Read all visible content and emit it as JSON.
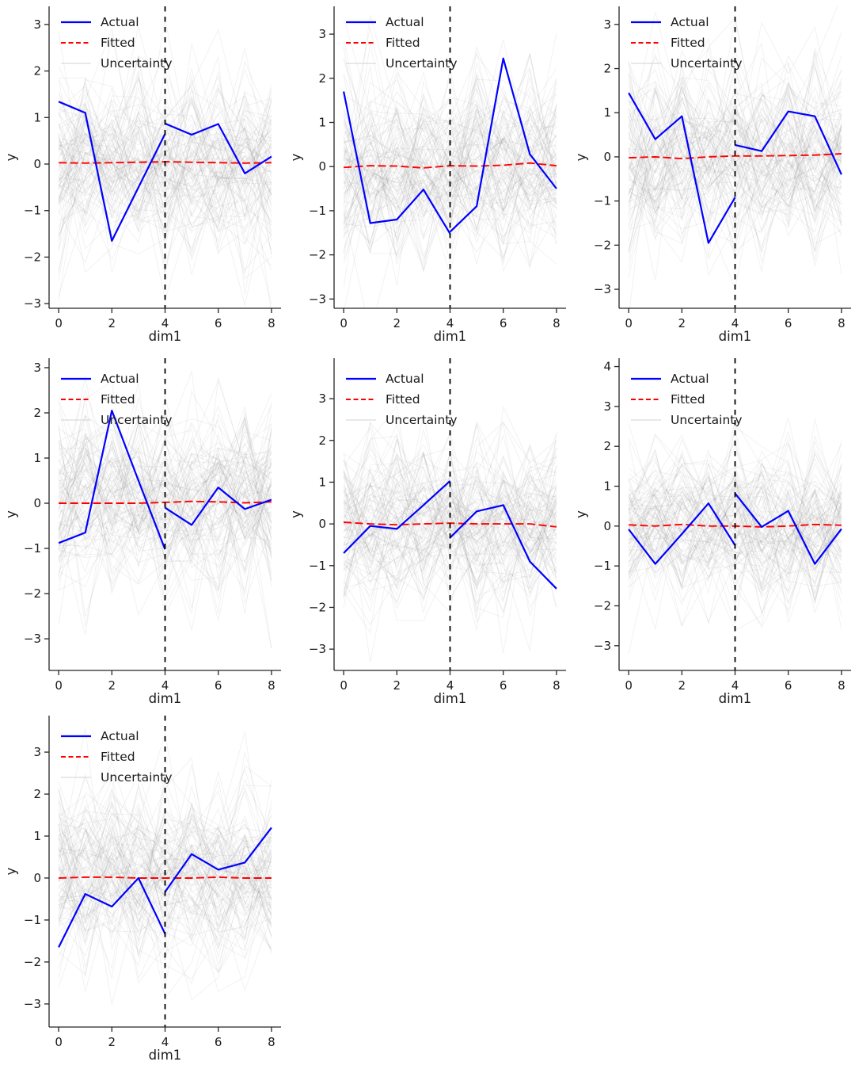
{
  "figure": {
    "background": "#ffffff",
    "text_color": "#1a1a1a",
    "spine_color": "#262626",
    "tick_color": "#262626",
    "actual_style": {
      "color": "#0000ff",
      "width": 2.2
    },
    "fitted_style": {
      "color": "#ff0000",
      "width": 1.9,
      "dash": "10,4.5"
    },
    "split_line": {
      "x": 4,
      "color": "#000000",
      "width": 1.8,
      "dash": "6.5,6.5"
    },
    "uncertainty_style": {
      "color": "#7f7f7f",
      "opacity": 0.1,
      "line_width": 1
    },
    "legend": {
      "entries": [
        {
          "label": "Actual",
          "color": "#0000ff",
          "dash": "solid",
          "width": 2.2
        },
        {
          "label": "Fitted",
          "color": "#ff0000",
          "dash": "dashed",
          "width": 1.9
        },
        {
          "label": "Uncertainty",
          "color": "#d9d9d9",
          "dash": "solid",
          "width": 1.3
        }
      ]
    }
  },
  "chart_data": [
    {
      "type": "line",
      "xlabel": "dim1",
      "ylabel": "y",
      "xticks": [
        0,
        2,
        4,
        6,
        8
      ],
      "yticks": [
        -3,
        -2,
        -1,
        0,
        1,
        2,
        3
      ],
      "xlim": [
        -0.36,
        8.36
      ],
      "ylim": [
        -3.1,
        3.39
      ],
      "split_x": 4,
      "series": [
        {
          "name": "Actual (observed)",
          "x": [
            0,
            1,
            2,
            3,
            4
          ],
          "values": [
            1.34,
            1.1,
            -1.65,
            -0.5,
            0.65
          ]
        },
        {
          "name": "Actual (after split)",
          "x": [
            4,
            5,
            6,
            7,
            8
          ],
          "values": [
            0.87,
            0.63,
            0.86,
            -0.2,
            0.16
          ]
        },
        {
          "name": "Fitted",
          "x": [
            0,
            1,
            2,
            3,
            4,
            5,
            6,
            7,
            8
          ],
          "values": [
            0.03,
            0.02,
            0.03,
            0.04,
            0.05,
            0.04,
            0.03,
            0.02,
            0.03
          ]
        }
      ],
      "uncertainty": {
        "n_lines": 100,
        "seed": 3,
        "sigma": 1.05
      }
    },
    {
      "type": "line",
      "xlabel": "dim1",
      "ylabel": "y",
      "xticks": [
        0,
        2,
        4,
        6,
        8
      ],
      "yticks": [
        -3,
        -2,
        -1,
        0,
        1,
        2,
        3
      ],
      "xlim": [
        -0.36,
        8.36
      ],
      "ylim": [
        -3.21,
        3.63
      ],
      "split_x": 4,
      "series": [
        {
          "name": "Actual (observed)",
          "x": [
            0,
            1,
            2,
            3,
            4
          ],
          "values": [
            1.7,
            -1.28,
            -1.2,
            -0.52,
            -1.52
          ]
        },
        {
          "name": "Actual (after split)",
          "x": [
            4,
            5,
            6,
            7,
            8
          ],
          "values": [
            -1.48,
            -0.9,
            2.45,
            0.28,
            -0.5
          ]
        },
        {
          "name": "Fitted",
          "x": [
            0,
            1,
            2,
            3,
            4,
            5,
            6,
            7,
            8
          ],
          "values": [
            -0.02,
            0.02,
            0.01,
            -0.03,
            0.02,
            0.01,
            0.03,
            0.08,
            0.02
          ]
        }
      ],
      "uncertainty": {
        "n_lines": 100,
        "seed": 7,
        "sigma": 1.05
      }
    },
    {
      "type": "line",
      "xlabel": "dim1",
      "ylabel": "y",
      "xticks": [
        0,
        2,
        4,
        6,
        8
      ],
      "yticks": [
        -3,
        -2,
        -1,
        0,
        1,
        2,
        3
      ],
      "xlim": [
        -0.36,
        8.36
      ],
      "ylim": [
        -3.43,
        3.41
      ],
      "split_x": 4,
      "series": [
        {
          "name": "Actual (observed)",
          "x": [
            0,
            1,
            2,
            3,
            4
          ],
          "values": [
            1.45,
            0.4,
            0.92,
            -1.95,
            -0.92
          ]
        },
        {
          "name": "Actual (after split)",
          "x": [
            4,
            5,
            6,
            7,
            8
          ],
          "values": [
            0.27,
            0.13,
            1.03,
            0.92,
            -0.4
          ]
        },
        {
          "name": "Fitted",
          "x": [
            0,
            1,
            2,
            3,
            4,
            5,
            6,
            7,
            8
          ],
          "values": [
            -0.02,
            0.0,
            -0.04,
            0.0,
            0.02,
            0.02,
            0.03,
            0.04,
            0.07
          ]
        }
      ],
      "uncertainty": {
        "n_lines": 100,
        "seed": 11,
        "sigma": 1.05
      }
    },
    {
      "type": "line",
      "xlabel": "dim1",
      "ylabel": "y",
      "xticks": [
        0,
        2,
        4,
        6,
        8
      ],
      "yticks": [
        -3,
        -2,
        -1,
        0,
        1,
        2,
        3
      ],
      "xlim": [
        -0.36,
        8.36
      ],
      "ylim": [
        -3.7,
        3.21
      ],
      "split_x": 4,
      "series": [
        {
          "name": "Actual (observed)",
          "x": [
            0,
            1,
            2,
            3,
            4
          ],
          "values": [
            -0.88,
            -0.65,
            2.05,
            0.5,
            -1.02
          ]
        },
        {
          "name": "Actual (after split)",
          "x": [
            4,
            5,
            6,
            7,
            8
          ],
          "values": [
            -0.1,
            -0.48,
            0.35,
            -0.13,
            0.08
          ]
        },
        {
          "name": "Fitted",
          "x": [
            0,
            1,
            2,
            3,
            4,
            5,
            6,
            7,
            8
          ],
          "values": [
            0.0,
            0.0,
            0.0,
            0.0,
            0.02,
            0.04,
            0.03,
            0.01,
            0.03
          ]
        }
      ],
      "uncertainty": {
        "n_lines": 100,
        "seed": 13,
        "sigma": 1.05
      }
    },
    {
      "type": "line",
      "xlabel": "dim1",
      "ylabel": "y",
      "xticks": [
        0,
        2,
        4,
        6,
        8
      ],
      "yticks": [
        -3,
        -2,
        -1,
        0,
        1,
        2,
        3
      ],
      "xlim": [
        -0.36,
        8.36
      ],
      "ylim": [
        -3.51,
        3.97
      ],
      "split_x": 4,
      "series": [
        {
          "name": "Actual (observed)",
          "x": [
            0,
            1,
            2,
            3,
            4
          ],
          "values": [
            -0.7,
            -0.05,
            -0.12,
            0.45,
            1.03
          ]
        },
        {
          "name": "Actual (after split)",
          "x": [
            4,
            5,
            6,
            7,
            8
          ],
          "values": [
            -0.33,
            0.3,
            0.45,
            -0.9,
            -1.55
          ]
        },
        {
          "name": "Fitted",
          "x": [
            0,
            1,
            2,
            3,
            4,
            5,
            6,
            7,
            8
          ],
          "values": [
            0.04,
            0.0,
            -0.02,
            0.0,
            0.02,
            0.0,
            0.0,
            0.0,
            -0.07
          ]
        }
      ],
      "uncertainty": {
        "n_lines": 100,
        "seed": 17,
        "sigma": 1.05
      }
    },
    {
      "type": "line",
      "xlabel": "dim1",
      "ylabel": "y",
      "xticks": [
        0,
        2,
        4,
        6,
        8
      ],
      "yticks": [
        -3,
        -2,
        -1,
        0,
        1,
        2,
        3,
        4
      ],
      "xlim": [
        -0.36,
        8.36
      ],
      "ylim": [
        -3.62,
        4.21
      ],
      "split_x": 4,
      "series": [
        {
          "name": "Actual (observed)",
          "x": [
            0,
            1,
            2,
            3,
            4
          ],
          "values": [
            -0.08,
            -0.95,
            -0.2,
            0.57,
            -0.48
          ]
        },
        {
          "name": "Actual (after split)",
          "x": [
            4,
            5,
            6,
            7,
            8
          ],
          "values": [
            0.82,
            -0.02,
            0.38,
            -0.95,
            -0.07
          ]
        },
        {
          "name": "Fitted",
          "x": [
            0,
            1,
            2,
            3,
            4,
            5,
            6,
            7,
            8
          ],
          "values": [
            0.03,
            0.0,
            0.04,
            0.0,
            0.0,
            -0.02,
            0.0,
            0.04,
            0.02
          ]
        }
      ],
      "uncertainty": {
        "n_lines": 100,
        "seed": 19,
        "sigma": 1.05
      }
    },
    {
      "type": "line",
      "xlabel": "dim1",
      "ylabel": "y",
      "xticks": [
        0,
        2,
        4,
        6,
        8
      ],
      "yticks": [
        -3,
        -2,
        -1,
        0,
        1,
        2,
        3
      ],
      "xlim": [
        -0.36,
        8.36
      ],
      "ylim": [
        -3.55,
        3.87
      ],
      "split_x": 4,
      "series": [
        {
          "name": "Actual (observed)",
          "x": [
            0,
            1,
            2,
            3,
            4
          ],
          "values": [
            -1.65,
            -0.38,
            -0.68,
            0.0,
            -1.33
          ]
        },
        {
          "name": "Actual (after split)",
          "x": [
            4,
            5,
            6,
            7,
            8
          ],
          "values": [
            -0.33,
            0.57,
            0.2,
            0.37,
            1.2
          ]
        },
        {
          "name": "Fitted",
          "x": [
            0,
            1,
            2,
            3,
            4,
            5,
            6,
            7,
            8
          ],
          "values": [
            0.0,
            0.02,
            0.02,
            0.0,
            0.0,
            0.0,
            0.02,
            0.0,
            0.0
          ]
        }
      ],
      "uncertainty": {
        "n_lines": 100,
        "seed": 23,
        "sigma": 1.05
      }
    }
  ]
}
